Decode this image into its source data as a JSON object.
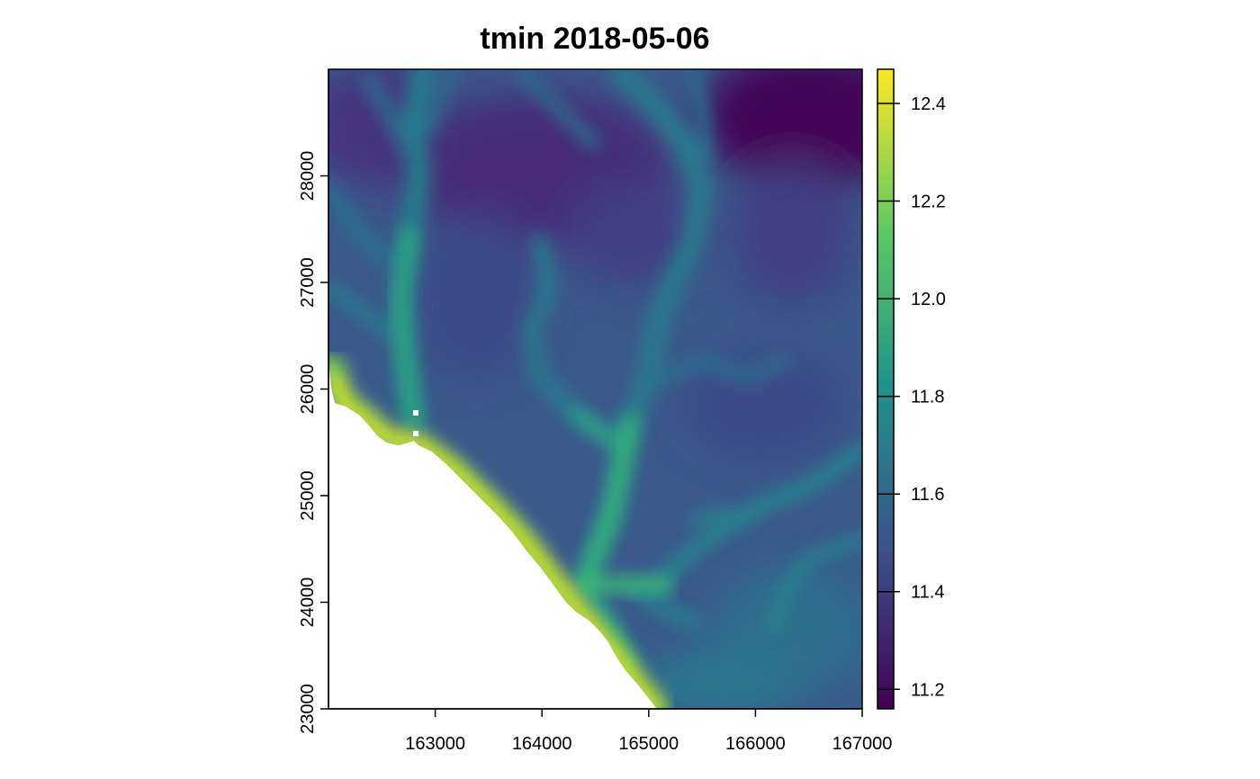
{
  "title": "tmin 2018-05-06",
  "map": {
    "variable": "tmin",
    "date": "2018-05-06",
    "x_ticks": [
      163000,
      164000,
      165000,
      166000,
      167000
    ],
    "y_ticks": [
      23000,
      24000,
      25000,
      26000,
      27000,
      28000
    ],
    "x_range": [
      162000,
      167000
    ],
    "y_range": [
      23000,
      29000
    ],
    "palette": "viridis",
    "colors": [
      "#440154",
      "#3b528b",
      "#21918c",
      "#5ec962",
      "#fde725"
    ],
    "nodata_color": "#ffffff"
  },
  "legend": {
    "ticks": [
      "11.2",
      "11.4",
      "11.6",
      "11.8",
      "12.0",
      "12.2",
      "12.4"
    ],
    "range": [
      11.16,
      12.47
    ]
  }
}
